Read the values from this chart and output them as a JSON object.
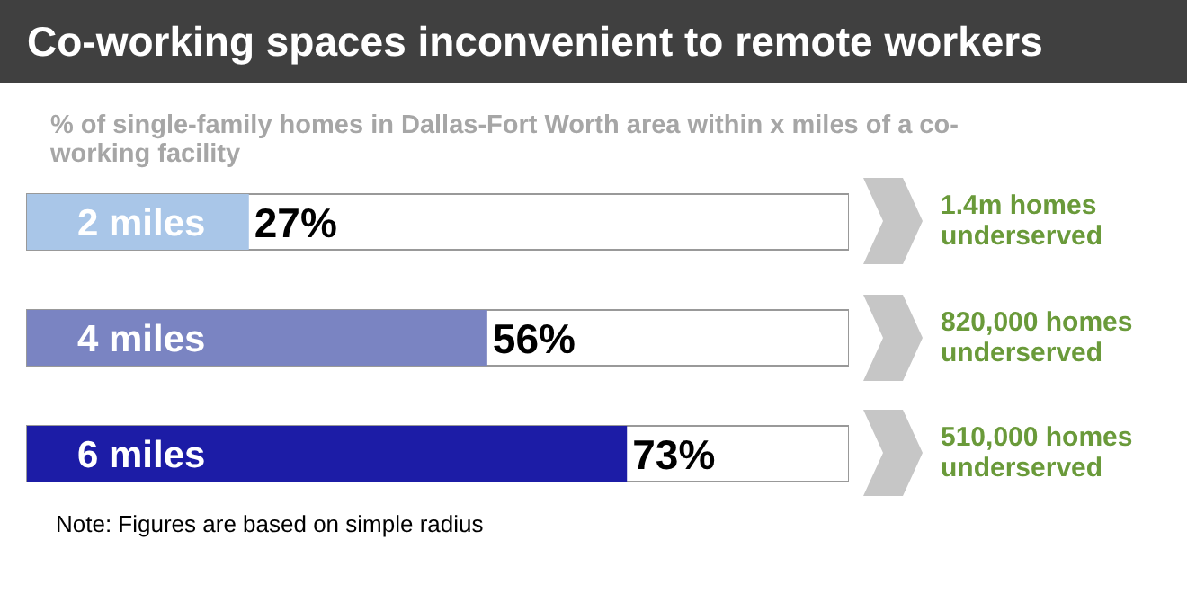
{
  "chart_data": {
    "type": "bar",
    "orientation": "horizontal",
    "title": "Co-working spaces inconvenient to remote workers",
    "subtitle": "% of single-family homes in Dallas-Fort Worth area within x miles of a co-working facility",
    "categories": [
      "2 miles",
      "4 miles",
      "6 miles"
    ],
    "values": [
      27,
      56,
      73
    ],
    "value_labels": [
      "27%",
      "56%",
      "73%"
    ],
    "colors": [
      "#a9c6e8",
      "#7a84c2",
      "#1c1ca6"
    ],
    "xlim": [
      0,
      100
    ],
    "tick_labels": false,
    "annotations": [
      "1.4m homes underserved",
      "820,000 homes underserved",
      "510,000 homes underserved",
      "Note: Figures are based on simple radius"
    ]
  }
}
